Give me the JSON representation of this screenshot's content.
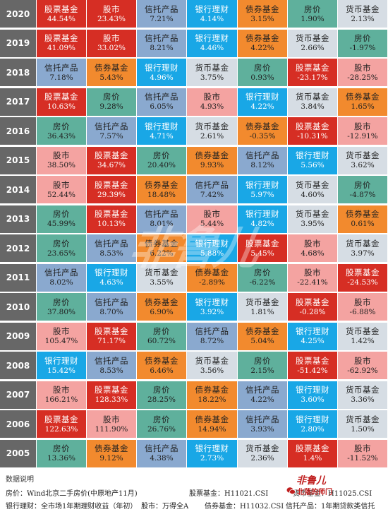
{
  "rows": [
    {
      "year": "2020",
      "cells": [
        {
          "name": "股票基金",
          "value": "44.54%",
          "type": "stock"
        },
        {
          "name": "股市",
          "value": "23.43%",
          "type": "stock"
        },
        {
          "name": "信托产品",
          "value": "7.21%",
          "type": "trust"
        },
        {
          "name": "银行理财",
          "value": "4.14%",
          "type": "bank"
        },
        {
          "name": "债券基金",
          "value": "3.15%",
          "type": "bond"
        },
        {
          "name": "房价",
          "value": "1.90%",
          "type": "cash"
        },
        {
          "name": "货币基金",
          "value": "2.13%",
          "type": "money"
        }
      ]
    },
    {
      "year": "2019",
      "cells": [
        {
          "name": "股票基金",
          "value": "41.09%",
          "type": "stock"
        },
        {
          "name": "股市",
          "value": "33.02%",
          "type": "stock"
        },
        {
          "name": "信托产品",
          "value": "8.21%",
          "type": "trust"
        },
        {
          "name": "银行理财",
          "value": "4.46%",
          "type": "bank"
        },
        {
          "name": "债券基金",
          "value": "4.22%",
          "type": "bond"
        },
        {
          "name": "货币基金",
          "value": "2.66%",
          "type": "money"
        },
        {
          "name": "房价",
          "value": "-1.97%",
          "type": "cash"
        }
      ]
    },
    {
      "year": "2018",
      "cells": [
        {
          "name": "信托产品",
          "value": "7.18%",
          "type": "trust"
        },
        {
          "name": "债券基金",
          "value": "5.43%",
          "type": "bond"
        },
        {
          "name": "银行理财",
          "value": "4.96%",
          "type": "bank"
        },
        {
          "name": "货币基金",
          "value": "3.75%",
          "type": "money"
        },
        {
          "name": "房价",
          "value": "0.93%",
          "type": "cash"
        },
        {
          "name": "股票基金",
          "value": "-23.17%",
          "type": "stock"
        },
        {
          "name": "股市",
          "value": "-28.25%",
          "type": "house"
        }
      ]
    },
    {
      "year": "2017",
      "cells": [
        {
          "name": "股票基金",
          "value": "10.63%",
          "type": "stock"
        },
        {
          "name": "房价",
          "value": "9.28%",
          "type": "cash"
        },
        {
          "name": "信托产品",
          "value": "6.05%",
          "type": "trust"
        },
        {
          "name": "股市",
          "value": "4.93%",
          "type": "house"
        },
        {
          "name": "银行理财",
          "value": "4.22%",
          "type": "bank"
        },
        {
          "name": "货币基金",
          "value": "3.84%",
          "type": "money"
        },
        {
          "name": "债券基金",
          "value": "1.65%",
          "type": "bond"
        }
      ]
    },
    {
      "year": "2016",
      "cells": [
        {
          "name": "房价",
          "value": "36.43%",
          "type": "cash"
        },
        {
          "name": "信托产品",
          "value": "7.57%",
          "type": "trust"
        },
        {
          "name": "银行理财",
          "value": "4.71%",
          "type": "bank"
        },
        {
          "name": "货币基金",
          "value": "2.61%",
          "type": "money"
        },
        {
          "name": "债券基金",
          "value": "-0.35%",
          "type": "bond"
        },
        {
          "name": "股票基金",
          "value": "-10.31%",
          "type": "stock"
        },
        {
          "name": "股市",
          "value": "-12.91%",
          "type": "house"
        }
      ]
    },
    {
      "year": "2015",
      "cells": [
        {
          "name": "股市",
          "value": "38.50%",
          "type": "house"
        },
        {
          "name": "股票基金",
          "value": "34.67%",
          "type": "stock"
        },
        {
          "name": "房价",
          "value": "20.40%",
          "type": "cash"
        },
        {
          "name": "债券基金",
          "value": "9.93%",
          "type": "bond"
        },
        {
          "name": "信托产品",
          "value": "8.12%",
          "type": "trust"
        },
        {
          "name": "银行理财",
          "value": "5.56%",
          "type": "bank"
        },
        {
          "name": "货币基金",
          "value": "3.62%",
          "type": "money"
        }
      ]
    },
    {
      "year": "2014",
      "cells": [
        {
          "name": "股市",
          "value": "52.44%",
          "type": "house"
        },
        {
          "name": "股票基金",
          "value": "29.39%",
          "type": "stock"
        },
        {
          "name": "债券基金",
          "value": "18.48%",
          "type": "bond"
        },
        {
          "name": "信托产品",
          "value": "7.42%",
          "type": "trust"
        },
        {
          "name": "银行理财",
          "value": "5.97%",
          "type": "bank"
        },
        {
          "name": "货币基金",
          "value": "4.60%",
          "type": "money"
        },
        {
          "name": "房价",
          "value": "-4.87%",
          "type": "cash"
        }
      ]
    },
    {
      "year": "2013",
      "cells": [
        {
          "name": "房价",
          "value": "45.99%",
          "type": "cash"
        },
        {
          "name": "股票基金",
          "value": "10.13%",
          "type": "stock"
        },
        {
          "name": "信托产品",
          "value": "8.01%",
          "type": "trust"
        },
        {
          "name": "股市",
          "value": "5.44%",
          "type": "house"
        },
        {
          "name": "银行理财",
          "value": "4.82%",
          "type": "bank"
        },
        {
          "name": "货币基金",
          "value": "3.95%",
          "type": "money"
        },
        {
          "name": "债券基金",
          "value": "0.61%",
          "type": "bond"
        }
      ]
    },
    {
      "year": "2012",
      "cells": [
        {
          "name": "房价",
          "value": "23.65%",
          "type": "cash"
        },
        {
          "name": "信托产品",
          "value": "8.53%",
          "type": "trust"
        },
        {
          "name": "债券基金",
          "value": "6.22%",
          "type": "bond"
        },
        {
          "name": "银行理财",
          "value": "5.88%",
          "type": "bank"
        },
        {
          "name": "股票基金",
          "value": "5.45%",
          "type": "stock"
        },
        {
          "name": "股市",
          "value": "4.68%",
          "type": "house"
        },
        {
          "name": "货币基金",
          "value": "3.97%",
          "type": "money"
        }
      ]
    },
    {
      "year": "2011",
      "cells": [
        {
          "name": "信托产品",
          "value": "8.02%",
          "type": "trust"
        },
        {
          "name": "银行理财",
          "value": "4.63%",
          "type": "bank"
        },
        {
          "name": "货币基金",
          "value": "3.55%",
          "type": "money"
        },
        {
          "name": "债券基金",
          "value": "-2.89%",
          "type": "bond"
        },
        {
          "name": "房价",
          "value": "-6.22%",
          "type": "cash"
        },
        {
          "name": "股市",
          "value": "-22.41%",
          "type": "house"
        },
        {
          "name": "股票基金",
          "value": "-24.53%",
          "type": "stock"
        }
      ]
    },
    {
      "year": "2010",
      "cells": [
        {
          "name": "房价",
          "value": "37.80%",
          "type": "cash"
        },
        {
          "name": "信托产品",
          "value": "8.70%",
          "type": "trust"
        },
        {
          "name": "债券基金",
          "value": "6.90%",
          "type": "bond"
        },
        {
          "name": "银行理财",
          "value": "3.92%",
          "type": "bank"
        },
        {
          "name": "货币基金",
          "value": "1.81%",
          "type": "money"
        },
        {
          "name": "股票基金",
          "value": "-0.28%",
          "type": "stock"
        },
        {
          "name": "股市",
          "value": "-6.88%",
          "type": "house"
        }
      ]
    },
    {
      "year": "2009",
      "cells": [
        {
          "name": "股市",
          "value": "105.47%",
          "type": "house"
        },
        {
          "name": "股票基金",
          "value": "71.17%",
          "type": "stock"
        },
        {
          "name": "房价",
          "value": "60.72%",
          "type": "cash"
        },
        {
          "name": "信托产品",
          "value": "8.72%",
          "type": "trust"
        },
        {
          "name": "债券基金",
          "value": "5.04%",
          "type": "bond"
        },
        {
          "name": "银行理财",
          "value": "4.25%",
          "type": "bank"
        },
        {
          "name": "货币基金",
          "value": "1.42%",
          "type": "money"
        }
      ]
    },
    {
      "year": "2008",
      "cells": [
        {
          "name": "银行理财",
          "value": "15.42%",
          "type": "bank"
        },
        {
          "name": "信托产品",
          "value": "8.53%",
          "type": "trust"
        },
        {
          "name": "债券基金",
          "value": "6.46%",
          "type": "bond"
        },
        {
          "name": "货币基金",
          "value": "3.56%",
          "type": "money"
        },
        {
          "name": "房价",
          "value": "2.15%",
          "type": "cash"
        },
        {
          "name": "股票基金",
          "value": "-51.42%",
          "type": "stock"
        },
        {
          "name": "股市",
          "value": "-62.92%",
          "type": "house"
        }
      ]
    },
    {
      "year": "2007",
      "cells": [
        {
          "name": "股市",
          "value": "166.21%",
          "type": "house"
        },
        {
          "name": "股票基金",
          "value": "128.33%",
          "type": "stock"
        },
        {
          "name": "房价",
          "value": "28.25%",
          "type": "cash"
        },
        {
          "name": "债券基金",
          "value": "18.22%",
          "type": "bond"
        },
        {
          "name": "信托产品",
          "value": "4.22%",
          "type": "trust"
        },
        {
          "name": "银行理财",
          "value": "3.60%",
          "type": "bank"
        },
        {
          "name": "货币基金",
          "value": "3.36%",
          "type": "money"
        }
      ]
    },
    {
      "year": "2006",
      "cells": [
        {
          "name": "股票基金",
          "value": "122.63%",
          "type": "stock"
        },
        {
          "name": "股市",
          "value": "111.90%",
          "type": "house"
        },
        {
          "name": "房价",
          "value": "26.76%",
          "type": "cash"
        },
        {
          "name": "债券基金",
          "value": "14.94%",
          "type": "bond"
        },
        {
          "name": "信托产品",
          "value": "3.93%",
          "type": "trust"
        },
        {
          "name": "银行理财",
          "value": "2.80%",
          "type": "bank"
        },
        {
          "name": "货币基金",
          "value": "1.50%",
          "type": "money"
        }
      ]
    },
    {
      "year": "2005",
      "cells": [
        {
          "name": "房价",
          "value": "13.36%",
          "type": "cash"
        },
        {
          "name": "债券基金",
          "value": "9.12%",
          "type": "bond"
        },
        {
          "name": "信托产品",
          "value": "4.38%",
          "type": "trust"
        },
        {
          "name": "银行理财",
          "value": "2.73%",
          "type": "bank"
        },
        {
          "name": "货币基金",
          "value": "2.36%",
          "type": "money"
        },
        {
          "name": "股票基金",
          "value": "1.4%",
          "type": "stock"
        },
        {
          "name": "股市",
          "value": "-11.52%",
          "type": "house"
        }
      ]
    }
  ],
  "watermark": "非鲁儿",
  "notes": {
    "title": "数据说明",
    "house": "房价：Wind北京二手房价(中原地产11月)",
    "stock_fund": "股票基金：H11021.CSI",
    "money_fund": "货币基金：H11025.CSI",
    "bank": "银行理财：全市场1年期理财收益（年初）",
    "stock_market": "股市：万得全A",
    "bond_fund": "债券基金：H11032.CSI",
    "trust": "信托产品：1年期贷款类信托"
  },
  "logo": {
    "mark": "非鲁儿",
    "sub": "北落的师门"
  },
  "colors": {
    "stock": "#d62e24",
    "house": "#f4a3a1",
    "trust": "#8aa9cf",
    "bank": "#19a7e6",
    "bond": "#f28a2e",
    "money": "#d6dde4",
    "cash": "#5fb09c",
    "year_bg": "#676767"
  }
}
